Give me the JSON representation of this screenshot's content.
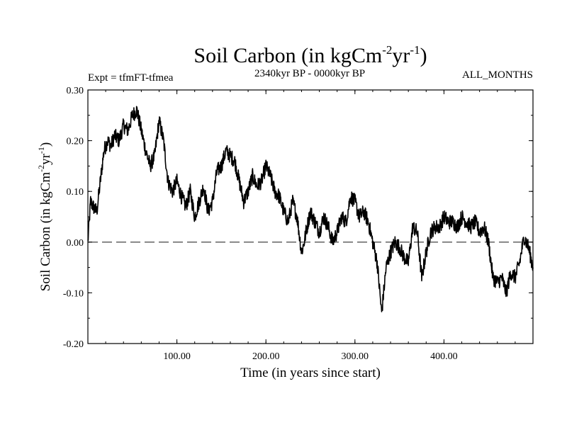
{
  "chart_data": {
    "type": "line",
    "title_main": "Soil Carbon (in kgCm",
    "title_sup1": "-2",
    "title_mid": "yr",
    "title_sup2": "-1",
    "title_end": ")",
    "subtitle_left": "Expt = tfmFT-tfmea",
    "subtitle_center": "2340kyr BP - 0000kyr BP",
    "subtitle_right": "ALL_MONTHS",
    "xlabel": "Time (in years since start)",
    "ylabel_main": "Soil Carbon (in kgCm",
    "ylabel_sup1": "-2",
    "ylabel_mid": "yr",
    "ylabel_sup2": "-1",
    "ylabel_end": ")",
    "xlim": [
      0,
      500
    ],
    "ylim": [
      -0.2,
      0.3
    ],
    "x_ticks": [
      100,
      200,
      300,
      400
    ],
    "x_tick_labels": [
      "100.00",
      "200.00",
      "300.00",
      "400.00"
    ],
    "y_ticks": [
      0.3,
      0.2,
      0.1,
      0.0,
      -0.1,
      -0.2
    ],
    "y_tick_labels": [
      "0.30",
      "0.20",
      "0.10",
      "0.00",
      "-0.10",
      "-0.20"
    ],
    "reference_line": 0.0,
    "series": [
      {
        "name": "Soil Carbon",
        "x": [
          0,
          3,
          6,
          10,
          14,
          18,
          22,
          26,
          30,
          35,
          40,
          45,
          50,
          55,
          60,
          65,
          70,
          75,
          80,
          85,
          90,
          95,
          100,
          105,
          110,
          115,
          120,
          125,
          130,
          135,
          140,
          145,
          150,
          155,
          160,
          165,
          170,
          175,
          180,
          185,
          190,
          195,
          200,
          205,
          210,
          215,
          220,
          225,
          230,
          235,
          240,
          243,
          245,
          250,
          255,
          260,
          265,
          270,
          275,
          280,
          285,
          290,
          295,
          300,
          305,
          310,
          315,
          320,
          325,
          330,
          335,
          340,
          345,
          350,
          355,
          360,
          365,
          370,
          375,
          380,
          385,
          390,
          395,
          400,
          405,
          410,
          415,
          420,
          425,
          430,
          435,
          440,
          445,
          450,
          455,
          460,
          465,
          470,
          475,
          480,
          485,
          490,
          495,
          500
        ],
        "y": [
          0.0,
          0.08,
          0.07,
          0.06,
          0.12,
          0.18,
          0.2,
          0.19,
          0.21,
          0.2,
          0.23,
          0.22,
          0.25,
          0.26,
          0.22,
          0.18,
          0.15,
          0.17,
          0.24,
          0.2,
          0.12,
          0.1,
          0.12,
          0.09,
          0.07,
          0.1,
          0.05,
          0.08,
          0.11,
          0.06,
          0.08,
          0.14,
          0.15,
          0.18,
          0.17,
          0.16,
          0.12,
          0.08,
          0.1,
          0.13,
          0.11,
          0.12,
          0.15,
          0.13,
          0.1,
          0.09,
          0.06,
          0.04,
          0.08,
          0.05,
          -0.02,
          0.0,
          0.02,
          0.06,
          0.04,
          0.02,
          0.05,
          0.03,
          0.0,
          0.02,
          0.05,
          0.04,
          0.09,
          0.08,
          0.05,
          0.06,
          0.04,
          0.0,
          -0.04,
          -0.14,
          -0.05,
          -0.02,
          0.0,
          -0.01,
          -0.03,
          -0.04,
          0.03,
          0.02,
          -0.07,
          -0.02,
          0.02,
          0.03,
          0.03,
          0.05,
          0.04,
          0.04,
          0.03,
          0.05,
          0.04,
          0.03,
          0.04,
          0.02,
          0.03,
          0.0,
          -0.07,
          -0.08,
          -0.07,
          -0.1,
          -0.06,
          -0.07,
          -0.04,
          0.01,
          -0.01,
          -0.05
        ]
      }
    ]
  }
}
